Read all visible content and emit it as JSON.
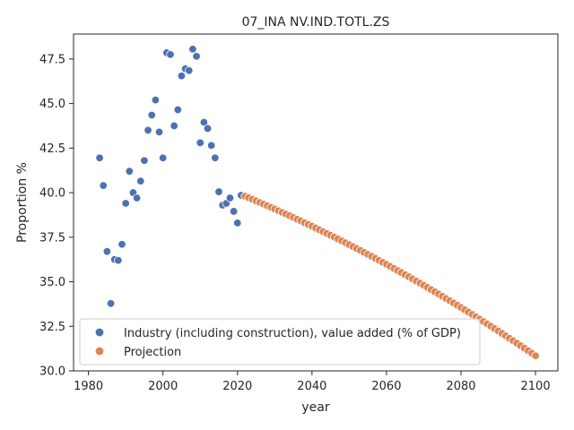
{
  "chart_data": {
    "type": "scatter",
    "title": "07_INA NV.IND.TOTL.ZS",
    "xlabel": "year",
    "ylabel": "Proportion %",
    "xlim": [
      1976,
      2106
    ],
    "ylim": [
      30.0,
      48.9
    ],
    "xticks": [
      1980,
      2000,
      2020,
      2040,
      2060,
      2080,
      2100
    ],
    "yticks": [
      30.0,
      32.5,
      35.0,
      37.5,
      40.0,
      42.5,
      45.0,
      47.5
    ],
    "ytick_labels": [
      "30.0",
      "32.5",
      "35.0",
      "37.5",
      "40.0",
      "42.5",
      "45.0",
      "47.5"
    ],
    "grid": false,
    "legend_position": "lower-left",
    "series": [
      {
        "name": "Industry (including construction), value added (% of GDP)",
        "color": "#4c72b0",
        "x": [
          1983,
          1984,
          1985,
          1986,
          1987,
          1988,
          1989,
          1990,
          1991,
          1992,
          1993,
          1994,
          1995,
          1996,
          1997,
          1998,
          1999,
          2000,
          2001,
          2002,
          2003,
          2004,
          2005,
          2006,
          2007,
          2008,
          2009,
          2010,
          2011,
          2012,
          2013,
          2014,
          2015,
          2016,
          2017,
          2018,
          2019,
          2020,
          2021
        ],
        "y": [
          41.95,
          40.4,
          36.7,
          33.78,
          36.25,
          36.2,
          37.1,
          39.4,
          41.2,
          40.0,
          39.7,
          40.65,
          41.8,
          43.5,
          44.35,
          45.2,
          43.4,
          41.95,
          47.85,
          47.75,
          43.75,
          44.65,
          46.55,
          46.95,
          46.85,
          48.05,
          47.65,
          42.8,
          43.95,
          43.6,
          42.65,
          41.95,
          40.05,
          39.3,
          39.4,
          39.7,
          38.95,
          38.3,
          39.85
        ]
      },
      {
        "name": "Projection",
        "color": "#dd8452",
        "x_start": 2022,
        "x_end": 2100,
        "y_start": 39.8,
        "y_mid": 35.86,
        "y_end": 30.85
      }
    ]
  }
}
